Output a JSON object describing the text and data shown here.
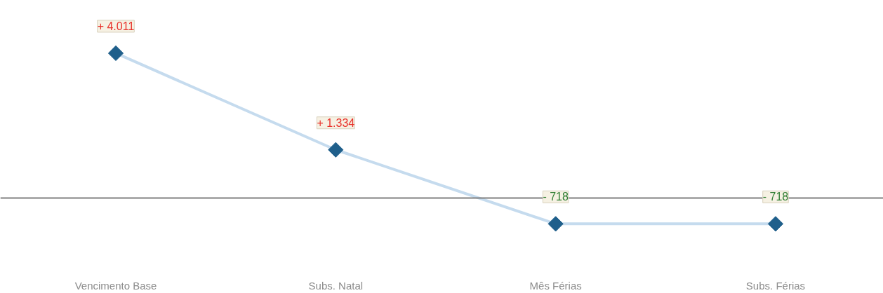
{
  "chart_data": {
    "type": "line",
    "categories": [
      "Vencimento Base",
      "Subs. Natal",
      "Mês Férias",
      "Subs. Férias"
    ],
    "series": [
      {
        "color": "#1f5f8b",
        "values": [
          4011,
          1334,
          -718,
          -718
        ],
        "value_labels": [
          "+ 4.011",
          "+ 1.334",
          "- 718",
          "- 718"
        ]
      }
    ],
    "marker": "diamond",
    "grid": false,
    "tick_labels": "x",
    "ref_lines": [
      {
        "axis": "y",
        "value": 0,
        "color": "#7f7f7f"
      }
    ]
  }
}
